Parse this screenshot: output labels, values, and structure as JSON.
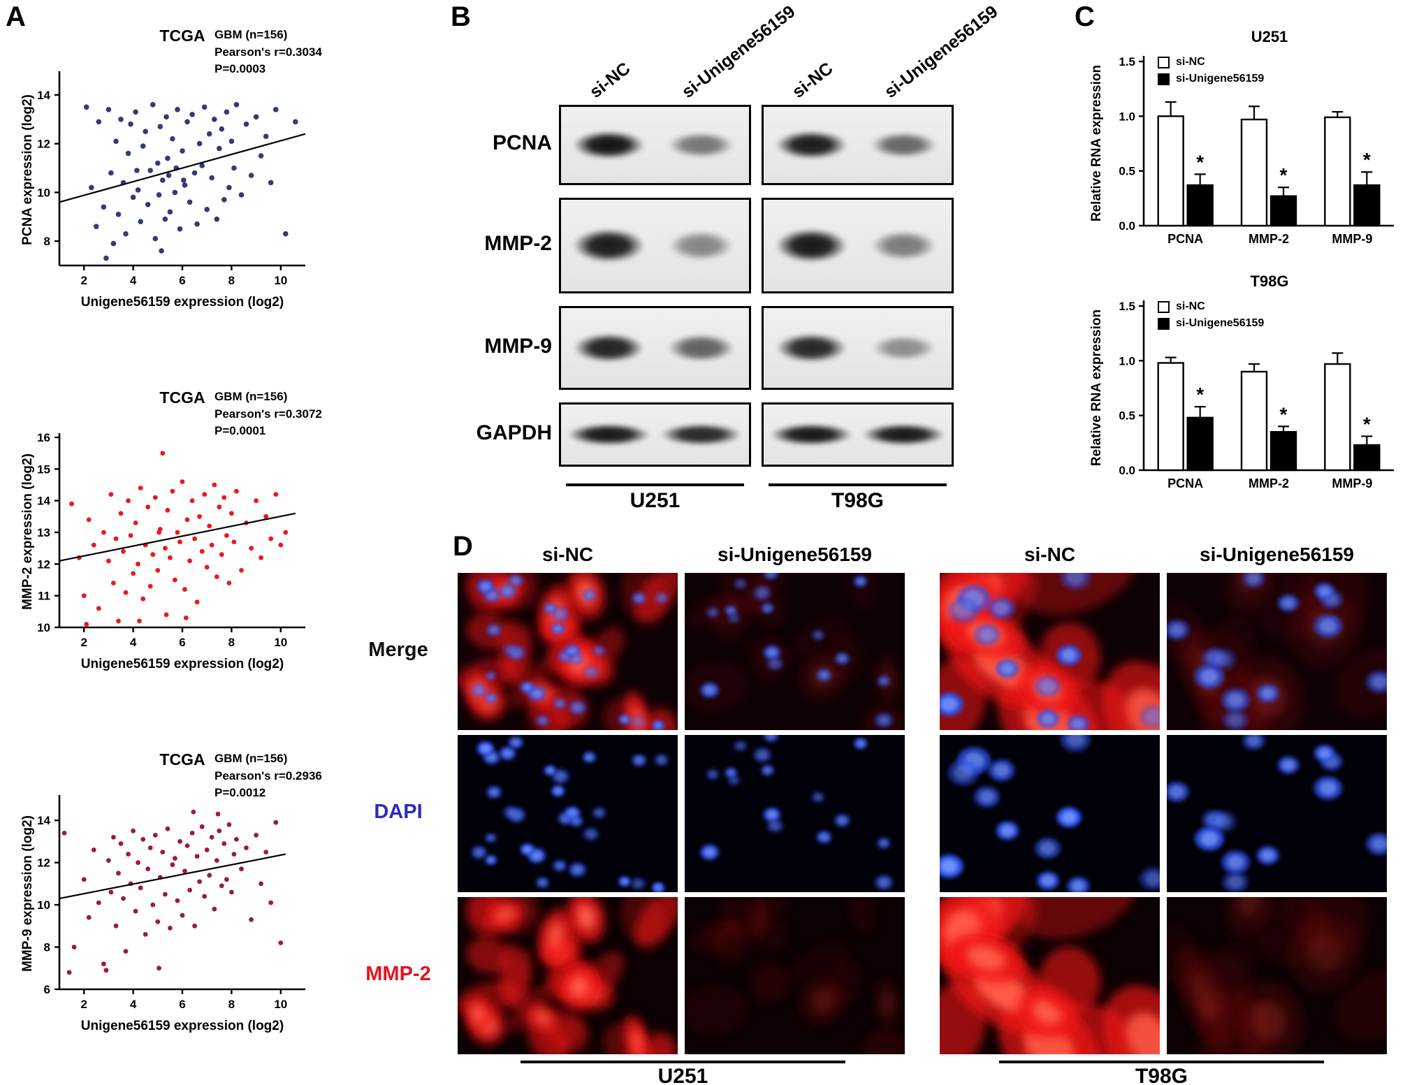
{
  "figure": {
    "panels": {
      "A": {
        "label": "A"
      },
      "B": {
        "label": "B",
        "lane_headers": [
          "si-NC",
          "si-Unigene56159",
          "si-NC",
          "si-Unigene56159"
        ],
        "rows": [
          {
            "protein": "PCNA",
            "u251": [
              0.97,
              0.52
            ],
            "t98g": [
              0.93,
              0.6
            ]
          },
          {
            "protein": "MMP-2",
            "u251": [
              0.93,
              0.45
            ],
            "t98g": [
              0.95,
              0.5
            ]
          },
          {
            "protein": "MMP-9",
            "u251": [
              0.9,
              0.62
            ],
            "t98g": [
              0.88,
              0.42
            ]
          },
          {
            "protein": "GAPDH",
            "u251": [
              0.95,
              0.88
            ],
            "t98g": [
              0.95,
              0.95
            ]
          }
        ],
        "group_labels": [
          "U251",
          "T98G"
        ]
      },
      "C": {
        "label": "C"
      },
      "D": {
        "label": "D",
        "col_headers": [
          "si-NC",
          "si-Unigene56159",
          "si-NC",
          "si-Unigene56159"
        ],
        "row_labels": [
          {
            "text": "Merge",
            "color": "#111111"
          },
          {
            "text": "DAPI",
            "color": "#2a2ac0"
          },
          {
            "text": "MMP-2",
            "color": "#e8121c"
          }
        ],
        "rows": [
          {
            "name": "merge",
            "red": 1.0,
            "blue": 1.0,
            "bg": "#0e0105"
          },
          {
            "name": "dapi",
            "red": 0.0,
            "blue": 1.15,
            "bg": "#010109"
          },
          {
            "name": "mmp2",
            "red": 1.05,
            "blue": 0.0,
            "bg": "#0c0103"
          }
        ],
        "columns": [
          {
            "seed": 11,
            "cells": 30,
            "red": 0.95,
            "blue": 0.85,
            "scale": 1.0
          },
          {
            "seed": 27,
            "cells": 16,
            "red": 0.16,
            "blue": 0.8,
            "scale": 1.05
          },
          {
            "seed": 53,
            "cells": 12,
            "red": 1.0,
            "blue": 0.95,
            "scale": 1.9
          },
          {
            "seed": 71,
            "cells": 13,
            "red": 0.15,
            "blue": 0.8,
            "scale": 1.7
          }
        ],
        "group_labels": [
          "U251",
          "T98G"
        ]
      }
    }
  },
  "chart_data": [
    {
      "type": "scatter",
      "title": "TCGA",
      "annotation_lines": [
        "GBM (n=156)",
        "Pearson's r=0.3034",
        "P=0.0003"
      ],
      "xlabel": "Unigene56159 expression (log2)",
      "ylabel": "PCNA expression (log2)",
      "xlim": [
        1,
        11
      ],
      "ylim": [
        7,
        14.8
      ],
      "xticks": [
        2,
        4,
        6,
        8,
        10
      ],
      "yticks": [
        8,
        10,
        12,
        14
      ],
      "color": "#33397b",
      "marker_size": 3.8,
      "trendline": {
        "x1": 1,
        "y1": 9.6,
        "x2": 11,
        "y2": 12.4
      },
      "points": [
        [
          2.1,
          13.5
        ],
        [
          2.3,
          10.2
        ],
        [
          2.5,
          8.6
        ],
        [
          2.6,
          12.9
        ],
        [
          2.8,
          9.4
        ],
        [
          2.9,
          7.3
        ],
        [
          3.0,
          13.4
        ],
        [
          3.1,
          10.8
        ],
        [
          3.2,
          7.9
        ],
        [
          3.3,
          12.1
        ],
        [
          3.4,
          9.1
        ],
        [
          3.5,
          13.0
        ],
        [
          3.6,
          10.4
        ],
        [
          3.7,
          8.3
        ],
        [
          3.8,
          11.6
        ],
        [
          3.9,
          12.8
        ],
        [
          4.0,
          9.8
        ],
        [
          4.1,
          13.3
        ],
        [
          4.15,
          10.9
        ],
        [
          4.2,
          10.1
        ],
        [
          4.3,
          8.8
        ],
        [
          4.4,
          11.9
        ],
        [
          4.5,
          12.5
        ],
        [
          4.6,
          9.5
        ],
        [
          4.7,
          10.9
        ],
        [
          4.8,
          13.6
        ],
        [
          4.9,
          8.1
        ],
        [
          5.0,
          11.2
        ],
        [
          5.05,
          9.9
        ],
        [
          5.1,
          12.7
        ],
        [
          5.15,
          7.6
        ],
        [
          5.2,
          10.5
        ],
        [
          5.3,
          8.9
        ],
        [
          5.35,
          13.1
        ],
        [
          5.4,
          11.4
        ],
        [
          5.45,
          10.7
        ],
        [
          5.5,
          9.2
        ],
        [
          5.6,
          12.2
        ],
        [
          5.7,
          10.0
        ],
        [
          5.75,
          11.0
        ],
        [
          5.8,
          13.4
        ],
        [
          5.9,
          8.5
        ],
        [
          6.0,
          11.7
        ],
        [
          6.05,
          10.5
        ],
        [
          6.1,
          10.3
        ],
        [
          6.2,
          12.9
        ],
        [
          6.3,
          9.6
        ],
        [
          6.4,
          13.2
        ],
        [
          6.5,
          10.8
        ],
        [
          6.6,
          8.7
        ],
        [
          6.7,
          12.0
        ],
        [
          6.8,
          11.1
        ],
        [
          6.9,
          13.5
        ],
        [
          7.0,
          9.3
        ],
        [
          7.1,
          12.4
        ],
        [
          7.2,
          10.6
        ],
        [
          7.3,
          13.0
        ],
        [
          7.4,
          8.9
        ],
        [
          7.5,
          11.8
        ],
        [
          7.6,
          12.6
        ],
        [
          7.7,
          9.7
        ],
        [
          7.8,
          13.3
        ],
        [
          7.9,
          10.2
        ],
        [
          8.0,
          12.1
        ],
        [
          8.1,
          11.0
        ],
        [
          8.2,
          13.6
        ],
        [
          8.4,
          9.9
        ],
        [
          8.6,
          12.8
        ],
        [
          8.8,
          10.7
        ],
        [
          9.0,
          13.1
        ],
        [
          9.2,
          11.5
        ],
        [
          9.4,
          12.3
        ],
        [
          9.6,
          10.4
        ],
        [
          9.8,
          13.4
        ],
        [
          10.2,
          8.3
        ],
        [
          10.6,
          12.9
        ]
      ]
    },
    {
      "type": "scatter",
      "title": "TCGA",
      "annotation_lines": [
        "GBM (n=156)",
        "Pearson's r=0.3072",
        "P=0.0001"
      ],
      "xlabel": "Unigene56159 expression (log2)",
      "ylabel": "MMP-2 expression (log2)",
      "xlim": [
        1,
        11
      ],
      "ylim": [
        10,
        16
      ],
      "xticks": [
        2,
        4,
        6,
        8,
        10
      ],
      "yticks": [
        10,
        11,
        12,
        13,
        14,
        15,
        16
      ],
      "color": "#e8191f",
      "marker_size": 3.4,
      "trendline": {
        "x1": 1,
        "y1": 12.1,
        "x2": 10.6,
        "y2": 13.6
      },
      "points": [
        [
          1.5,
          13.9
        ],
        [
          1.8,
          12.2
        ],
        [
          2.0,
          11.0
        ],
        [
          2.1,
          10.1
        ],
        [
          2.2,
          13.4
        ],
        [
          2.4,
          12.6
        ],
        [
          2.6,
          10.6
        ],
        [
          2.8,
          13.0
        ],
        [
          3.0,
          12.1
        ],
        [
          3.1,
          14.2
        ],
        [
          3.2,
          11.4
        ],
        [
          3.3,
          12.8
        ],
        [
          3.4,
          10.2
        ],
        [
          3.5,
          13.6
        ],
        [
          3.6,
          12.4
        ],
        [
          3.7,
          11.1
        ],
        [
          3.8,
          14.0
        ],
        [
          3.9,
          12.9
        ],
        [
          4.0,
          11.7
        ],
        [
          4.1,
          13.3
        ],
        [
          4.2,
          12.0
        ],
        [
          4.25,
          10.2
        ],
        [
          4.3,
          14.4
        ],
        [
          4.4,
          10.9
        ],
        [
          4.5,
          12.6
        ],
        [
          4.6,
          13.8
        ],
        [
          4.7,
          11.3
        ],
        [
          4.8,
          12.3
        ],
        [
          4.9,
          14.1
        ],
        [
          5.0,
          11.8
        ],
        [
          5.05,
          13.0
        ],
        [
          5.1,
          13.1
        ],
        [
          5.2,
          15.5
        ],
        [
          5.3,
          12.5
        ],
        [
          5.35,
          10.4
        ],
        [
          5.4,
          13.7
        ],
        [
          5.5,
          12.2
        ],
        [
          5.6,
          14.3
        ],
        [
          5.7,
          11.5
        ],
        [
          5.8,
          13.0
        ],
        [
          5.9,
          12.7
        ],
        [
          6.0,
          14.6
        ],
        [
          6.1,
          11.2
        ],
        [
          6.15,
          10.3
        ],
        [
          6.2,
          13.4
        ],
        [
          6.3,
          12.1
        ],
        [
          6.4,
          14.0
        ],
        [
          6.5,
          12.8
        ],
        [
          6.6,
          10.8
        ],
        [
          6.7,
          13.5
        ],
        [
          6.8,
          12.4
        ],
        [
          6.9,
          14.2
        ],
        [
          7.0,
          11.9
        ],
        [
          7.1,
          13.2
        ],
        [
          7.2,
          12.6
        ],
        [
          7.3,
          14.5
        ],
        [
          7.4,
          11.6
        ],
        [
          7.5,
          13.8
        ],
        [
          7.6,
          12.3
        ],
        [
          7.7,
          14.1
        ],
        [
          7.8,
          12.9
        ],
        [
          7.9,
          11.4
        ],
        [
          8.0,
          13.6
        ],
        [
          8.1,
          12.7
        ],
        [
          8.2,
          14.3
        ],
        [
          8.4,
          11.8
        ],
        [
          8.6,
          13.3
        ],
        [
          8.8,
          12.5
        ],
        [
          9.0,
          14.0
        ],
        [
          9.2,
          12.2
        ],
        [
          9.4,
          13.5
        ],
        [
          9.6,
          12.8
        ],
        [
          9.8,
          14.2
        ],
        [
          10.0,
          12.6
        ],
        [
          10.2,
          13.0
        ]
      ]
    },
    {
      "type": "scatter",
      "title": "TCGA",
      "annotation_lines": [
        "GBM (n=156)",
        "Pearson's r=0.2936",
        "P=0.0012"
      ],
      "xlabel": "Unigene56159 expression (log2)",
      "ylabel": "MMP-9 expression (log2)",
      "xlim": [
        1,
        11
      ],
      "ylim": [
        6,
        15
      ],
      "xticks": [
        2,
        4,
        6,
        8,
        10
      ],
      "yticks": [
        6,
        8,
        10,
        12,
        14
      ],
      "color": "#9e1a38",
      "marker_size": 3.4,
      "trendline": {
        "x1": 1,
        "y1": 10.3,
        "x2": 10.2,
        "y2": 12.4
      },
      "points": [
        [
          1.2,
          13.4
        ],
        [
          1.4,
          6.8
        ],
        [
          1.6,
          8.0
        ],
        [
          2.0,
          11.2
        ],
        [
          2.2,
          9.4
        ],
        [
          2.4,
          12.6
        ],
        [
          2.6,
          10.1
        ],
        [
          2.8,
          7.2
        ],
        [
          2.9,
          6.9
        ],
        [
          3.0,
          12.1
        ],
        [
          3.1,
          10.6
        ],
        [
          3.2,
          13.2
        ],
        [
          3.3,
          9.0
        ],
        [
          3.4,
          11.5
        ],
        [
          3.5,
          12.9
        ],
        [
          3.6,
          10.3
        ],
        [
          3.7,
          7.8
        ],
        [
          3.8,
          12.4
        ],
        [
          3.9,
          11.0
        ],
        [
          4.0,
          13.5
        ],
        [
          4.1,
          9.7
        ],
        [
          4.2,
          12.0
        ],
        [
          4.3,
          10.8
        ],
        [
          4.4,
          13.1
        ],
        [
          4.5,
          8.6
        ],
        [
          4.6,
          11.7
        ],
        [
          4.7,
          12.7
        ],
        [
          4.8,
          10.0
        ],
        [
          4.9,
          13.3
        ],
        [
          5.0,
          9.2
        ],
        [
          5.05,
          7.0
        ],
        [
          5.1,
          11.3
        ],
        [
          5.2,
          12.5
        ],
        [
          5.3,
          10.5
        ],
        [
          5.4,
          13.6
        ],
        [
          5.5,
          8.9
        ],
        [
          5.6,
          11.9
        ],
        [
          5.7,
          12.2
        ],
        [
          5.8,
          10.2
        ],
        [
          5.9,
          13.0
        ],
        [
          6.0,
          9.5
        ],
        [
          6.1,
          11.6
        ],
        [
          6.2,
          12.8
        ],
        [
          6.3,
          10.7
        ],
        [
          6.4,
          13.4
        ],
        [
          6.45,
          14.4
        ],
        [
          6.5,
          9.0
        ],
        [
          6.6,
          12.3
        ],
        [
          6.7,
          11.1
        ],
        [
          6.8,
          13.7
        ],
        [
          6.9,
          10.4
        ],
        [
          7.0,
          12.6
        ],
        [
          7.1,
          11.4
        ],
        [
          7.2,
          13.2
        ],
        [
          7.3,
          9.8
        ],
        [
          7.4,
          12.1
        ],
        [
          7.45,
          14.3
        ],
        [
          7.5,
          13.5
        ],
        [
          7.6,
          10.9
        ],
        [
          7.7,
          12.9
        ],
        [
          7.8,
          11.2
        ],
        [
          7.9,
          13.8
        ],
        [
          8.0,
          10.6
        ],
        [
          8.1,
          12.4
        ],
        [
          8.2,
          13.1
        ],
        [
          8.4,
          11.7
        ],
        [
          8.6,
          12.7
        ],
        [
          8.8,
          9.3
        ],
        [
          9.0,
          13.3
        ],
        [
          9.2,
          11.0
        ],
        [
          9.4,
          12.5
        ],
        [
          9.6,
          10.1
        ],
        [
          9.8,
          13.9
        ],
        [
          10.0,
          8.2
        ]
      ]
    },
    {
      "type": "bar",
      "title": "U251",
      "ylabel": "Relative RNA expression",
      "categories": [
        "PCNA",
        "MMP-2",
        "MMP-9"
      ],
      "ylim": [
        0,
        1.5
      ],
      "yticks": [
        "0.0",
        "0.5",
        "1.0",
        "1.5"
      ],
      "series": [
        {
          "name": "si-NC",
          "fill": "#ffffff",
          "values": [
            1.0,
            0.97,
            0.99
          ],
          "errors": [
            0.13,
            0.12,
            0.05
          ]
        },
        {
          "name": "si-Unigene56159",
          "fill": "#000000",
          "values": [
            0.37,
            0.27,
            0.37
          ],
          "errors": [
            0.1,
            0.08,
            0.12
          ],
          "sig": [
            "*",
            "*",
            "*"
          ]
        }
      ]
    },
    {
      "type": "bar",
      "title": "T98G",
      "ylabel": "Relative RNA expression",
      "categories": [
        "PCNA",
        "MMP-2",
        "MMP-9"
      ],
      "ylim": [
        0,
        1.5
      ],
      "yticks": [
        "0.0",
        "0.5",
        "1.0",
        "1.5"
      ],
      "series": [
        {
          "name": "si-NC",
          "fill": "#ffffff",
          "values": [
            0.98,
            0.9,
            0.97
          ],
          "errors": [
            0.05,
            0.07,
            0.1
          ]
        },
        {
          "name": "si-Unigene56159",
          "fill": "#000000",
          "values": [
            0.48,
            0.35,
            0.23
          ],
          "errors": [
            0.1,
            0.05,
            0.08
          ],
          "sig": [
            "*",
            "*",
            "*"
          ]
        }
      ]
    }
  ]
}
